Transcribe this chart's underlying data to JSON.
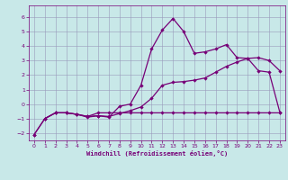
{
  "xlabel": "Windchill (Refroidissement éolien,°C)",
  "bg_color": "#c8e8e8",
  "grid_color": "#9999bb",
  "line_color": "#770077",
  "xlim": [
    -0.5,
    23.5
  ],
  "ylim": [
    -2.5,
    6.8
  ],
  "xticks": [
    0,
    1,
    2,
    3,
    4,
    5,
    6,
    7,
    8,
    9,
    10,
    11,
    12,
    13,
    14,
    15,
    16,
    17,
    18,
    19,
    20,
    21,
    22,
    23
  ],
  "yticks": [
    -2,
    -1,
    0,
    1,
    2,
    3,
    4,
    5,
    6
  ],
  "line1_x": [
    0,
    1,
    2,
    3,
    4,
    5,
    6,
    7,
    8,
    9,
    10,
    11,
    12,
    13,
    14,
    15,
    16,
    17,
    18,
    19,
    20,
    21,
    22,
    23
  ],
  "line1_y": [
    -2.1,
    -1.0,
    -0.6,
    -0.6,
    -0.7,
    -0.9,
    -0.8,
    -0.9,
    -0.15,
    0.0,
    1.3,
    3.8,
    5.1,
    5.9,
    5.0,
    3.5,
    3.6,
    3.8,
    4.1,
    3.2,
    3.15,
    2.3,
    2.2,
    -0.55
  ],
  "line2_x": [
    0,
    1,
    2,
    3,
    4,
    5,
    6,
    7,
    8,
    9,
    10,
    11,
    12,
    13,
    14,
    15,
    16,
    17,
    18,
    19,
    20,
    21,
    22,
    23
  ],
  "line2_y": [
    -2.1,
    -1.0,
    -0.6,
    -0.6,
    -0.7,
    -0.85,
    -0.8,
    -0.85,
    -0.65,
    -0.45,
    -0.2,
    0.4,
    1.3,
    1.5,
    1.55,
    1.65,
    1.8,
    2.2,
    2.6,
    2.9,
    3.15,
    3.2,
    3.0,
    2.3
  ],
  "line3_x": [
    1,
    2,
    3,
    4,
    5,
    6,
    7,
    8,
    9,
    10,
    11,
    12,
    13,
    14,
    15,
    16,
    17,
    18,
    19,
    20,
    21,
    22,
    23
  ],
  "line3_y": [
    -1.0,
    -0.6,
    -0.6,
    -0.7,
    -0.85,
    -0.6,
    -0.6,
    -0.6,
    -0.6,
    -0.6,
    -0.6,
    -0.6,
    -0.6,
    -0.6,
    -0.6,
    -0.6,
    -0.6,
    -0.6,
    -0.6,
    -0.6,
    -0.6,
    -0.6,
    -0.6
  ]
}
